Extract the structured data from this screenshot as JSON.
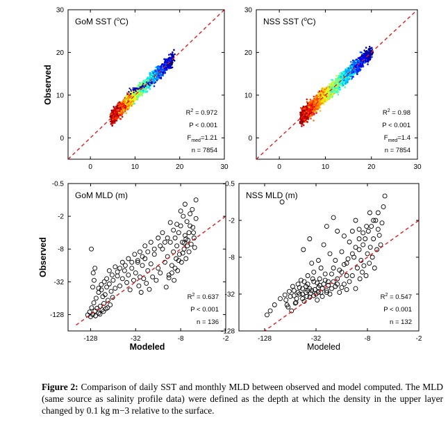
{
  "caption": {
    "label": "Figure 2:",
    "text": "Comparison of daily SST and monthly MLD between observed and model computed. The MLD (same source as salinity profile data) were defined as the depth at which the density in the upper layer changed by 0.1 kg m−3 relative to the surface."
  },
  "y_label": "Observed",
  "x_label": "Modeled",
  "chart_data": [
    {
      "type": "scatter",
      "id": "gom_sst",
      "title": "GoM SST (°C)",
      "xlim": [
        -5,
        30
      ],
      "ylim": [
        -5,
        30
      ],
      "x_ticks": [
        0,
        10,
        20,
        30
      ],
      "y_ticks": [
        0,
        10,
        20,
        30
      ],
      "x_tick_labels": [
        "0",
        "10",
        "20",
        "30"
      ],
      "y_tick_labels": [
        "0",
        "10",
        "20",
        "30"
      ],
      "one_to_one_line": true,
      "density_colored": true,
      "stats": {
        "r2_label": "R",
        "r2_value": "= 0.972",
        "p": "P < 0.001",
        "f_label": "F",
        "f_sub": "med",
        "f_value": "=1.21",
        "n": "n = 7854"
      },
      "cloud": {
        "x_range": [
          5,
          18.5
        ],
        "spread": 0.7
      }
    },
    {
      "type": "scatter",
      "id": "nss_sst",
      "title": "NSS SST (°C)",
      "xlim": [
        -5,
        30
      ],
      "ylim": [
        -5,
        30
      ],
      "x_ticks": [
        0,
        10,
        20,
        30
      ],
      "y_ticks": [
        0,
        10,
        20,
        30
      ],
      "x_tick_labels": [
        "0",
        "10",
        "20",
        "30"
      ],
      "y_tick_labels": [
        "0",
        "10",
        "20",
        "30"
      ],
      "one_to_one_line": true,
      "density_colored": true,
      "stats": {
        "r2_label": "R",
        "r2_value": "= 0.98",
        "p": "P < 0.001",
        "f_label": "F",
        "f_sub": "med",
        "f_value": "=1.4",
        "n": "n = 7854"
      },
      "cloud": {
        "x_range": [
          5,
          20
        ],
        "spread": 0.8
      }
    },
    {
      "type": "scatter",
      "id": "gom_mld",
      "title": "GoM MLD (m)",
      "scale": "log2",
      "xlim": [
        -256,
        -2
      ],
      "ylim": [
        -256,
        -0.5
      ],
      "x_ticks": [
        -128,
        -32,
        -8,
        -2
      ],
      "y_ticks": [
        -128,
        -32,
        -8,
        -2,
        -0.5
      ],
      "x_tick_labels": [
        "-128",
        "-32",
        "-8",
        "-2"
      ],
      "y_tick_labels": [
        "-128",
        "-32",
        "-8",
        "-2",
        "-0.5"
      ],
      "one_to_one_line": true,
      "stats": {
        "r2_label": "R",
        "r2_value": "= 0.637",
        "p": "P < 0.001",
        "n": "n = 136"
      },
      "points": [
        [
          -128,
          -140
        ],
        [
          -120,
          -128
        ],
        [
          -112,
          -110
        ],
        [
          -105,
          -98
        ],
        [
          -100,
          -120
        ],
        [
          -95,
          -90
        ],
        [
          -90,
          -105
        ],
        [
          -85,
          -80
        ],
        [
          -80,
          -100
        ],
        [
          -75,
          -70
        ],
        [
          -70,
          -85
        ],
        [
          -65,
          -62
        ],
        [
          -120,
          -40
        ],
        [
          -115,
          -30
        ],
        [
          -118,
          -22
        ],
        [
          -112,
          -18
        ],
        [
          -125,
          -8
        ],
        [
          -100,
          -50
        ],
        [
          -92,
          -45
        ],
        [
          -88,
          -60
        ],
        [
          -82,
          -55
        ],
        [
          -78,
          -40
        ],
        [
          -72,
          -35
        ],
        [
          -68,
          -48
        ],
        [
          -64,
          -30
        ],
        [
          -60,
          -42
        ],
        [
          -56,
          -25
        ],
        [
          -52,
          -38
        ],
        [
          -48,
          -28
        ],
        [
          -45,
          -20
        ],
        [
          -42,
          -33
        ],
        [
          -40,
          -24
        ],
        [
          -38,
          -45
        ],
        [
          -36,
          -18
        ],
        [
          -34,
          -30
        ],
        [
          -32,
          -22
        ],
        [
          -30,
          -14
        ],
        [
          -29,
          -38
        ],
        [
          -28,
          -26
        ],
        [
          -27,
          -50
        ],
        [
          -26,
          -16
        ],
        [
          -25,
          -28
        ],
        [
          -24,
          -12
        ],
        [
          -23,
          -34
        ],
        [
          -22,
          -20
        ],
        [
          -21,
          -44
        ],
        [
          -20,
          -15
        ],
        [
          -19,
          -26
        ],
        [
          -18,
          -10
        ],
        [
          -17,
          -30
        ],
        [
          -16,
          -18
        ],
        [
          -15,
          -22
        ],
        [
          -14,
          -8
        ],
        [
          -13,
          -14
        ],
        [
          -12.5,
          -40
        ],
        [
          -12,
          -11
        ],
        [
          -11.5,
          -24
        ],
        [
          -11,
          -6
        ],
        [
          -10.5,
          -16
        ],
        [
          -10,
          -9
        ],
        [
          -9.8,
          -30
        ],
        [
          -9.5,
          -5
        ],
        [
          -9.2,
          -12
        ],
        [
          -9,
          -7
        ],
        [
          -8.8,
          -20
        ],
        [
          -8.5,
          -4
        ],
        [
          -8.3,
          -10
        ],
        [
          -8,
          -3
        ],
        [
          -7.8,
          -14
        ],
        [
          -7.6,
          -6
        ],
        [
          -7.4,
          -2
        ],
        [
          -7.2,
          -8
        ],
        [
          -7,
          -4.5
        ],
        [
          -6.8,
          -12
        ],
        [
          -6.6,
          -2.5
        ],
        [
          -6.4,
          -5.5
        ],
        [
          -6.2,
          -9
        ],
        [
          -6,
          -3
        ],
        [
          -5.8,
          -6.5
        ],
        [
          -5.6,
          -1.5
        ],
        [
          -5.4,
          -4
        ],
        [
          -5.2,
          -7.5
        ],
        [
          -5,
          -2.2
        ],
        [
          -5,
          -1.0
        ],
        [
          -6,
          -1.8
        ],
        [
          -7,
          -1.2
        ],
        [
          -8,
          -1.6
        ],
        [
          -9,
          -2.8
        ],
        [
          -10,
          -3.6
        ],
        [
          -11,
          -2.6
        ],
        [
          -12,
          -5
        ],
        [
          -13,
          -6
        ],
        [
          -14,
          -4
        ],
        [
          -15,
          -7
        ],
        [
          -16,
          -5
        ],
        [
          -18,
          -8
        ],
        [
          -20,
          -6
        ],
        [
          -22,
          -9
        ],
        [
          -24,
          -7
        ],
        [
          -26,
          -11
        ],
        [
          -28,
          -9
        ],
        [
          -30,
          -13
        ],
        [
          -33,
          -10
        ],
        [
          -36,
          -14
        ],
        [
          -40,
          -12
        ],
        [
          -44,
          -16
        ],
        [
          -48,
          -14
        ],
        [
          -52,
          -18
        ],
        [
          -56,
          -21
        ],
        [
          -60,
          -17
        ],
        [
          -66,
          -24
        ],
        [
          -72,
          -20
        ],
        [
          -78,
          -28
        ],
        [
          -84,
          -32
        ],
        [
          -92,
          -36
        ],
        [
          -100,
          -42
        ],
        [
          -108,
          -64
        ],
        [
          -116,
          -78
        ],
        [
          -124,
          -96
        ],
        [
          -132,
          -115
        ],
        [
          -140,
          -130
        ],
        [
          -110,
          -135
        ],
        [
          -96,
          -126
        ],
        [
          -86,
          -112
        ],
        [
          -76,
          -96
        ],
        [
          -6.5,
          -7
        ],
        [
          -7.5,
          -9.5
        ],
        [
          -8.5,
          -13
        ],
        [
          -9.5,
          -18
        ],
        [
          -10.5,
          -22
        ],
        [
          -11.5,
          -27
        ],
        [
          -5.5,
          -3.2
        ],
        [
          -6.2,
          -4
        ],
        [
          -6.8,
          -5.2
        ],
        [
          -7.2,
          -6.2
        ],
        [
          -5.3,
          -5
        ]
      ]
    },
    {
      "type": "scatter",
      "id": "nss_mld",
      "title": "NSS MLD (m)",
      "scale": "log2",
      "xlim": [
        -256,
        -2
      ],
      "ylim": [
        -128,
        -0.5
      ],
      "x_ticks": [
        -128,
        -32,
        -8,
        -2
      ],
      "y_ticks": [
        -128,
        -32,
        -8,
        -2,
        -0.5
      ],
      "x_tick_labels": [
        "-128",
        "-32",
        "-8",
        "-2"
      ],
      "y_tick_labels": [
        "-128",
        "-32",
        "-8",
        "-2",
        "-0.5"
      ],
      "one_to_one_line": true,
      "stats": {
        "r2_label": "R",
        "r2_value": "= 0.547",
        "p": "P < 0.001",
        "n": "n = 132"
      },
      "points": [
        [
          -80,
          -1
        ],
        [
          -56,
          -45
        ],
        [
          -62,
          -60
        ],
        [
          -68,
          -52
        ],
        [
          -72,
          -40
        ],
        [
          -64,
          -35
        ],
        [
          -58,
          -28
        ],
        [
          -54,
          -38
        ],
        [
          -50,
          -32
        ],
        [
          -46,
          -26
        ],
        [
          -44,
          -42
        ],
        [
          -42,
          -30
        ],
        [
          -40,
          -22
        ],
        [
          -38,
          -36
        ],
        [
          -36,
          -28
        ],
        [
          -34,
          -20
        ],
        [
          -32,
          -32
        ],
        [
          -31,
          -40
        ],
        [
          -30,
          -25
        ],
        [
          -29,
          -18
        ],
        [
          -28,
          -30
        ],
        [
          -27,
          -35
        ],
        [
          -26,
          -22
        ],
        [
          -25,
          -15
        ],
        [
          -24,
          -28
        ],
        [
          -23,
          -20
        ],
        [
          -22,
          -32
        ],
        [
          -21,
          -26
        ],
        [
          -20,
          -12
        ],
        [
          -19,
          -24
        ],
        [
          -18,
          -18
        ],
        [
          -17,
          -30
        ],
        [
          -16,
          -14
        ],
        [
          -15,
          -22
        ],
        [
          -14,
          -10
        ],
        [
          -13,
          -20
        ],
        [
          -12,
          -16
        ],
        [
          -11.5,
          -8
        ],
        [
          -11,
          -26
        ],
        [
          -10.5,
          -12
        ],
        [
          -10,
          -6
        ],
        [
          -9.8,
          -18
        ],
        [
          -9.5,
          -9
        ],
        [
          -9.2,
          -14
        ],
        [
          -9,
          -5
        ],
        [
          -8.8,
          -11
        ],
        [
          -8.5,
          -4
        ],
        [
          -8.3,
          -16
        ],
        [
          -8,
          -7
        ],
        [
          -7.8,
          -3
        ],
        [
          -7.6,
          -10
        ],
        [
          -7.4,
          -5.5
        ],
        [
          -7.2,
          -2.5
        ],
        [
          -7,
          -8
        ],
        [
          -6.8,
          -4
        ],
        [
          -6.6,
          -12
        ],
        [
          -6.4,
          -2
        ],
        [
          -6.2,
          -6
        ],
        [
          -6,
          -1.5
        ],
        [
          -5.8,
          -3.5
        ],
        [
          -5.6,
          -5
        ],
        [
          -5.4,
          -2.2
        ],
        [
          -5.2,
          -1.2
        ],
        [
          -5,
          -0.8
        ],
        [
          -45,
          -6
        ],
        [
          -38,
          -4
        ],
        [
          -30,
          -9
        ],
        [
          -26,
          -5
        ],
        [
          -22,
          -7
        ],
        [
          -18,
          -3
        ],
        [
          -15,
          -3.6
        ],
        [
          -24,
          -2.5
        ],
        [
          -20,
          -1.8
        ],
        [
          -34,
          -14
        ],
        [
          -40,
          -16
        ],
        [
          -48,
          -19
        ],
        [
          -52,
          -22
        ],
        [
          -60,
          -24
        ],
        [
          -66,
          -29
        ],
        [
          -74,
          -33
        ],
        [
          -84,
          -38
        ],
        [
          -98,
          -48
        ],
        [
          -110,
          -60
        ],
        [
          -120,
          -70
        ],
        [
          -36,
          -10
        ],
        [
          -28,
          -12
        ],
        [
          -19,
          -9
        ],
        [
          -16,
          -6.5
        ],
        [
          -13,
          -4.5
        ],
        [
          -12,
          -3
        ],
        [
          -11,
          -2
        ],
        [
          -10,
          -2.8
        ],
        [
          -14,
          -16
        ],
        [
          -17,
          -13
        ],
        [
          -21,
          -15
        ],
        [
          -25,
          -19
        ],
        [
          -29,
          -23
        ],
        [
          -33,
          -27
        ],
        [
          -37,
          -31
        ],
        [
          -41,
          -35
        ],
        [
          -46,
          -38
        ],
        [
          -55,
          -44
        ],
        [
          -6,
          -2.8
        ],
        [
          -6.8,
          -2
        ],
        [
          -7.5,
          -1.5
        ],
        [
          -8.2,
          -2.5
        ],
        [
          -9,
          -3.2
        ],
        [
          -10,
          -4
        ],
        [
          -11,
          -5.5
        ],
        [
          -12,
          -7
        ],
        [
          -13.5,
          -8.5
        ],
        [
          -15,
          -10.5
        ],
        [
          -40,
          -28
        ],
        [
          -44,
          -20
        ],
        [
          -50,
          -25
        ],
        [
          -58,
          -34
        ],
        [
          -70,
          -48
        ],
        [
          -42,
          -24
        ],
        [
          -35,
          -18
        ],
        [
          -31,
          -21
        ],
        [
          -27,
          -26
        ],
        [
          -23,
          -23
        ],
        [
          -20,
          -20
        ],
        [
          -18,
          -22
        ],
        [
          -16,
          -25
        ],
        [
          -14,
          -27
        ],
        [
          -30,
          -30
        ],
        [
          -34,
          -34
        ],
        [
          -24,
          -30
        ],
        [
          -46,
          -32
        ],
        [
          -38,
          -26
        ],
        [
          -52,
          -30
        ]
      ]
    }
  ]
}
